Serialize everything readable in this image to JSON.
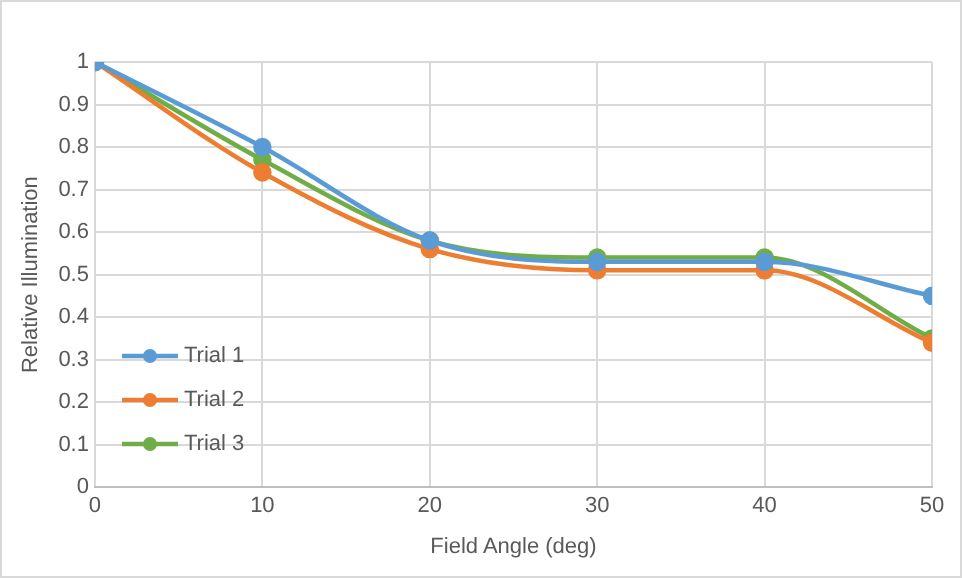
{
  "chart_data": {
    "type": "line",
    "xlabel": "Field Angle (deg)",
    "ylabel": "Relative Illumination",
    "x": [
      0,
      10,
      20,
      30,
      40,
      50
    ],
    "series": [
      {
        "name": "Trial 1",
        "color": "#5b9bd5",
        "values": [
          1,
          0.8,
          0.58,
          0.53,
          0.53,
          0.45
        ]
      },
      {
        "name": "Trial 2",
        "color": "#ed7d31",
        "values": [
          1,
          0.74,
          0.56,
          0.51,
          0.51,
          0.34
        ]
      },
      {
        "name": "Trial 3",
        "color": "#70ad47",
        "values": [
          1,
          0.77,
          0.58,
          0.54,
          0.54,
          0.35
        ]
      }
    ],
    "xlim": [
      0,
      50
    ],
    "xticks": [
      0,
      10,
      20,
      30,
      40,
      50
    ],
    "ylim": [
      0,
      1
    ],
    "yticks": [
      0,
      0.1,
      0.2,
      0.3,
      0.4,
      0.5,
      0.6,
      0.7,
      0.8,
      0.9,
      1
    ],
    "grid": true,
    "legend": "bottom left",
    "marker": "circle",
    "line_style": "solid"
  }
}
